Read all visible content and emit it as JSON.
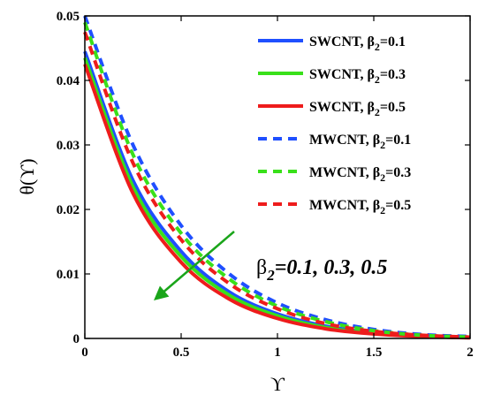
{
  "chart_data": {
    "type": "line",
    "xlabel": "ϒ",
    "ylabel": "θ(ϒ)",
    "xlim": [
      0,
      2
    ],
    "ylim": [
      0,
      0.05
    ],
    "xticks": [
      "0",
      "0.5",
      "1",
      "1.5",
      "2"
    ],
    "yticks": [
      "0",
      "0.01",
      "0.02",
      "0.03",
      "0.04",
      "0.05"
    ],
    "grid": false,
    "legend_position": "top-right",
    "annotation": {
      "beta_symbol": "β",
      "beta_sub": "2",
      "values_text": "=0.1, 0.3, 0.5"
    },
    "series": [
      {
        "label_main": "SWCNT, β",
        "label_sub": "2",
        "label_value": "=0.1",
        "color": "#1f4fff",
        "style": "solid",
        "x": [
          0,
          0.25,
          0.5,
          0.75,
          1.0,
          1.25,
          1.5,
          1.75,
          2.0
        ],
        "y": [
          0.0445,
          0.0245,
          0.0135,
          0.0072,
          0.0038,
          0.0019,
          0.0009,
          0.0004,
          0.0002
        ]
      },
      {
        "label_main": "SWCNT, β",
        "label_sub": "2",
        "label_value": "=0.3",
        "color": "#39e01a",
        "style": "solid",
        "x": [
          0,
          0.25,
          0.5,
          0.75,
          1.0,
          1.25,
          1.5,
          1.75,
          2.0
        ],
        "y": [
          0.0435,
          0.0235,
          0.0127,
          0.0067,
          0.0035,
          0.0017,
          0.0008,
          0.0004,
          0.0002
        ]
      },
      {
        "label_main": "SWCNT, β",
        "label_sub": "2",
        "label_value": "=0.5",
        "color": "#ee1c1c",
        "style": "solid",
        "x": [
          0,
          0.25,
          0.5,
          0.75,
          1.0,
          1.25,
          1.5,
          1.75,
          2.0
        ],
        "y": [
          0.0425,
          0.0225,
          0.0118,
          0.0061,
          0.0031,
          0.0015,
          0.0007,
          0.0003,
          0.0001
        ]
      },
      {
        "label_main": "MWCNT, β",
        "label_sub": "2",
        "label_value": "=0.1",
        "color": "#1f4fff",
        "style": "dashed",
        "x": [
          0,
          0.25,
          0.5,
          0.75,
          1.0,
          1.25,
          1.5,
          1.75,
          2.0
        ],
        "y": [
          0.05,
          0.03,
          0.0175,
          0.01,
          0.0055,
          0.0029,
          0.0014,
          0.0006,
          0.0003
        ]
      },
      {
        "label_main": "MWCNT, β",
        "label_sub": "2",
        "label_value": "=0.3",
        "color": "#39e01a",
        "style": "dashed",
        "x": [
          0,
          0.25,
          0.5,
          0.75,
          1.0,
          1.25,
          1.5,
          1.75,
          2.0
        ],
        "y": [
          0.049,
          0.0285,
          0.0163,
          0.0092,
          0.005,
          0.0026,
          0.0012,
          0.0005,
          0.0002
        ]
      },
      {
        "label_main": "MWCNT, β",
        "label_sub": "2",
        "label_value": "=0.5",
        "color": "#ee1c1c",
        "style": "dashed",
        "x": [
          0,
          0.25,
          0.5,
          0.75,
          1.0,
          1.25,
          1.5,
          1.75,
          2.0
        ],
        "y": [
          0.0475,
          0.0272,
          0.0153,
          0.0085,
          0.0046,
          0.0023,
          0.0011,
          0.0005,
          0.0002
        ]
      }
    ]
  }
}
